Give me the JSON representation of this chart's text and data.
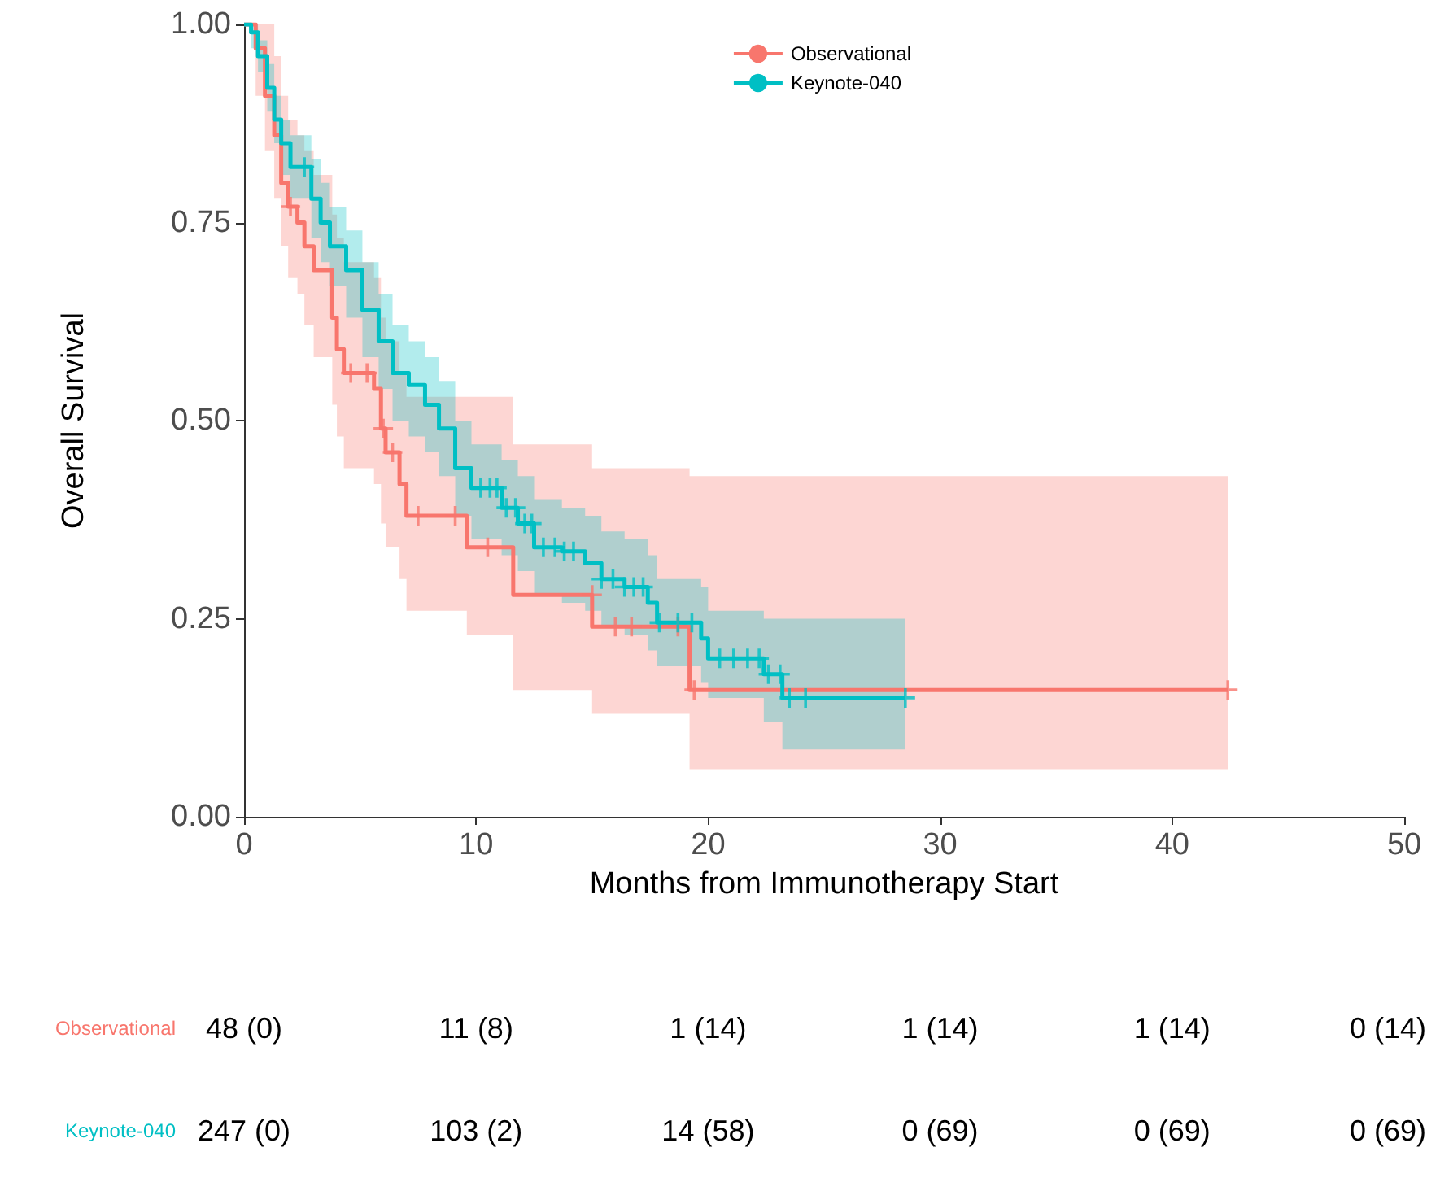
{
  "chart_data": {
    "type": "line",
    "xlabel": "Months from Immunotherapy Start",
    "ylabel": "Overall Survival",
    "xlim": [
      0,
      50
    ],
    "xticks": [
      0,
      10,
      20,
      30,
      40,
      50
    ],
    "ylim": [
      0,
      1
    ],
    "yticks": [
      {
        "value": 0,
        "label": "0.00"
      },
      {
        "value": 0.25,
        "label": "0.25"
      },
      {
        "value": 0.5,
        "label": "0.50"
      },
      {
        "value": 0.75,
        "label": "0.75"
      },
      {
        "value": 1,
        "label": "1.00"
      }
    ],
    "legend": "top right",
    "grid": false,
    "series": [
      {
        "name": "Observational",
        "color": "#f8766d",
        "x": [
          0,
          0.5,
          0.5,
          0.9,
          0.9,
          1.3,
          1.3,
          1.6,
          1.6,
          1.9,
          1.9,
          2.3,
          2.3,
          2.6,
          2.6,
          3.0,
          3.0,
          3.8,
          3.8,
          4.0,
          4.0,
          4.3,
          4.3,
          5.6,
          5.6,
          5.9,
          5.9,
          6.1,
          6.1,
          6.7,
          6.7,
          7.0,
          7.0,
          9.6,
          9.6,
          11.6,
          11.6,
          15.0,
          15.0,
          19.2,
          19.2,
          42.4
        ],
        "values": [
          1,
          1,
          0.97,
          0.97,
          0.91,
          0.91,
          0.86,
          0.86,
          0.8,
          0.8,
          0.77,
          0.77,
          0.75,
          0.75,
          0.72,
          0.72,
          0.69,
          0.69,
          0.63,
          0.63,
          0.59,
          0.59,
          0.56,
          0.56,
          0.54,
          0.54,
          0.49,
          0.49,
          0.46,
          0.46,
          0.42,
          0.42,
          0.38,
          0.38,
          0.34,
          0.34,
          0.28,
          0.28,
          0.24,
          0.24,
          0.16,
          0.16
        ],
        "lower": [
          1,
          1,
          0.91,
          0.91,
          0.84,
          0.84,
          0.78,
          0.78,
          0.72,
          0.72,
          0.68,
          0.68,
          0.66,
          0.66,
          0.62,
          0.62,
          0.58,
          0.58,
          0.52,
          0.52,
          0.48,
          0.48,
          0.44,
          0.44,
          0.42,
          0.42,
          0.37,
          0.37,
          0.34,
          0.34,
          0.3,
          0.3,
          0.26,
          0.26,
          0.23,
          0.23,
          0.16,
          0.16,
          0.13,
          0.13,
          0.06,
          0.06
        ],
        "upper": [
          1,
          1,
          1,
          1,
          1,
          1,
          0.96,
          0.96,
          0.91,
          0.91,
          0.88,
          0.88,
          0.86,
          0.86,
          0.84,
          0.84,
          0.81,
          0.81,
          0.76,
          0.76,
          0.73,
          0.73,
          0.7,
          0.7,
          0.68,
          0.68,
          0.63,
          0.63,
          0.6,
          0.6,
          0.56,
          0.56,
          0.53,
          0.53,
          0.53,
          0.53,
          0.47,
          0.47,
          0.44,
          0.44,
          0.43,
          0.43
        ]
      },
      {
        "name": "Keynote-040",
        "color": "#00bfc4",
        "x": [
          0,
          0.3,
          0.3,
          0.6,
          0.6,
          1.0,
          1.0,
          1.3,
          1.3,
          1.6,
          1.6,
          2.0,
          2.0,
          2.9,
          2.9,
          3.3,
          3.3,
          3.7,
          3.7,
          4.4,
          4.4,
          5.1,
          5.1,
          5.8,
          5.8,
          6.4,
          6.4,
          7.1,
          7.1,
          7.8,
          7.8,
          8.4,
          8.4,
          9.1,
          9.1,
          9.8,
          9.8,
          11.1,
          11.1,
          11.8,
          11.8,
          12.5,
          12.5,
          13.7,
          13.7,
          14.7,
          14.7,
          15.4,
          15.4,
          16.4,
          16.4,
          17.4,
          17.4,
          17.8,
          17.8,
          19.7,
          19.7,
          20.0,
          20.0,
          22.4,
          22.4,
          23.2,
          23.2,
          28.5
        ],
        "values": [
          1,
          1,
          0.99,
          0.99,
          0.96,
          0.96,
          0.92,
          0.92,
          0.88,
          0.88,
          0.85,
          0.85,
          0.82,
          0.82,
          0.78,
          0.78,
          0.75,
          0.75,
          0.72,
          0.72,
          0.69,
          0.69,
          0.64,
          0.64,
          0.6,
          0.6,
          0.56,
          0.56,
          0.545,
          0.545,
          0.52,
          0.52,
          0.49,
          0.49,
          0.44,
          0.44,
          0.415,
          0.415,
          0.39,
          0.39,
          0.37,
          0.37,
          0.34,
          0.34,
          0.335,
          0.335,
          0.32,
          0.32,
          0.3,
          0.3,
          0.29,
          0.29,
          0.27,
          0.27,
          0.245,
          0.245,
          0.225,
          0.225,
          0.2,
          0.2,
          0.18,
          0.18,
          0.15,
          0.15
        ],
        "lower": [
          1,
          1,
          0.97,
          0.97,
          0.94,
          0.94,
          0.89,
          0.89,
          0.85,
          0.85,
          0.81,
          0.81,
          0.78,
          0.78,
          0.73,
          0.73,
          0.7,
          0.7,
          0.67,
          0.67,
          0.63,
          0.63,
          0.58,
          0.58,
          0.54,
          0.54,
          0.5,
          0.5,
          0.48,
          0.48,
          0.46,
          0.46,
          0.43,
          0.43,
          0.38,
          0.38,
          0.35,
          0.35,
          0.33,
          0.33,
          0.31,
          0.31,
          0.28,
          0.28,
          0.27,
          0.27,
          0.26,
          0.26,
          0.24,
          0.24,
          0.23,
          0.23,
          0.21,
          0.21,
          0.19,
          0.19,
          0.17,
          0.17,
          0.15,
          0.15,
          0.12,
          0.12,
          0.085,
          0.085
        ],
        "upper": [
          1,
          1,
          1,
          1,
          0.98,
          0.98,
          0.95,
          0.95,
          0.91,
          0.91,
          0.88,
          0.88,
          0.86,
          0.86,
          0.83,
          0.83,
          0.8,
          0.8,
          0.77,
          0.77,
          0.74,
          0.74,
          0.7,
          0.7,
          0.66,
          0.66,
          0.62,
          0.62,
          0.6,
          0.6,
          0.58,
          0.58,
          0.55,
          0.55,
          0.5,
          0.5,
          0.47,
          0.47,
          0.45,
          0.45,
          0.43,
          0.43,
          0.4,
          0.4,
          0.39,
          0.39,
          0.38,
          0.38,
          0.36,
          0.36,
          0.35,
          0.35,
          0.33,
          0.33,
          0.3,
          0.3,
          0.29,
          0.29,
          0.26,
          0.26,
          0.25,
          0.25,
          0.25,
          0.25
        ]
      },
      {
        "type": "scatter",
        "marker": "cross",
        "color": "#f8766d",
        "x": [
          2.0,
          4.6,
          5.3,
          6.0,
          6.4,
          7.5,
          9.1,
          10.5,
          15.0,
          16.0,
          16.7,
          18.7,
          19.4,
          42.4
        ],
        "values": [
          0.77,
          0.56,
          0.56,
          0.49,
          0.46,
          0.38,
          0.38,
          0.34,
          0.28,
          0.24,
          0.24,
          0.24,
          0.16,
          0.16
        ]
      },
      {
        "type": "scatter",
        "marker": "cross",
        "color": "#00bfc4",
        "x": [
          2.6,
          10.2,
          10.6,
          10.9,
          11.3,
          11.7,
          12.1,
          12.4,
          12.9,
          13.4,
          13.8,
          14.2,
          15.4,
          15.9,
          16.4,
          16.8,
          17.2,
          17.9,
          18.7,
          19.3,
          20.5,
          21.1,
          21.7,
          22.2,
          22.6,
          23.1,
          23.5,
          24.2,
          28.5
        ],
        "values": [
          0.82,
          0.415,
          0.415,
          0.415,
          0.39,
          0.39,
          0.37,
          0.37,
          0.34,
          0.34,
          0.335,
          0.335,
          0.3,
          0.3,
          0.29,
          0.29,
          0.29,
          0.245,
          0.245,
          0.245,
          0.2,
          0.2,
          0.2,
          0.2,
          0.18,
          0.18,
          0.15,
          0.15,
          0.15
        ]
      }
    ],
    "annotations": [
      "48 (0)",
      "11 (8)",
      "1 (14)",
      "1 (14)",
      "1 (14)",
      "0 (14)",
      "247 (0)",
      "103 (2)",
      "14 (58)",
      "0 (69)",
      "0 (69)",
      "0 (69)"
    ]
  }
}
